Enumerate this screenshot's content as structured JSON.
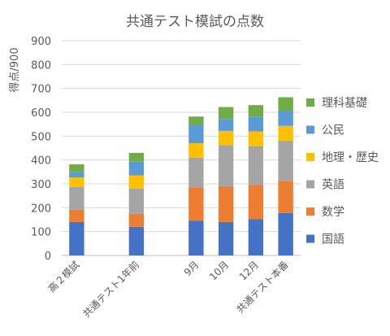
{
  "chart_data": {
    "type": "bar",
    "stacked": true,
    "title": "共通テスト模試の点数",
    "ylabel": "得点/900",
    "xlabel": "",
    "ylim": [
      0,
      900
    ],
    "yticks": [
      "0",
      "100",
      "200",
      "300",
      "400",
      "500",
      "600",
      "700",
      "800",
      "900"
    ],
    "grid": true,
    "legend_position": "right",
    "categories": [
      "高２模試",
      "",
      "共通テスト1年前",
      "",
      "9月",
      "10月",
      "12月",
      "共通テスト本番"
    ],
    "series": [
      {
        "name": "国語",
        "color": "#4472C4",
        "values": [
          140,
          null,
          120,
          null,
          145,
          140,
          152,
          178
        ]
      },
      {
        "name": "数学",
        "color": "#ED7D31",
        "values": [
          52,
          null,
          55,
          null,
          140,
          150,
          143,
          135
        ]
      },
      {
        "name": "英語",
        "color": "#A5A5A5",
        "values": [
          95,
          null,
          105,
          null,
          125,
          172,
          162,
          168
        ]
      },
      {
        "name": "地理・歴史",
        "color": "#FFC000",
        "values": [
          40,
          null,
          55,
          null,
          60,
          60,
          63,
          62
        ]
      },
      {
        "name": "公民",
        "color": "#5B9BD5",
        "values": [
          23,
          null,
          58,
          null,
          77,
          50,
          60,
          62
        ]
      },
      {
        "name": "理科基礎",
        "color": "#70AD47",
        "values": [
          32,
          null,
          37,
          null,
          35,
          50,
          50,
          58
        ]
      }
    ]
  }
}
